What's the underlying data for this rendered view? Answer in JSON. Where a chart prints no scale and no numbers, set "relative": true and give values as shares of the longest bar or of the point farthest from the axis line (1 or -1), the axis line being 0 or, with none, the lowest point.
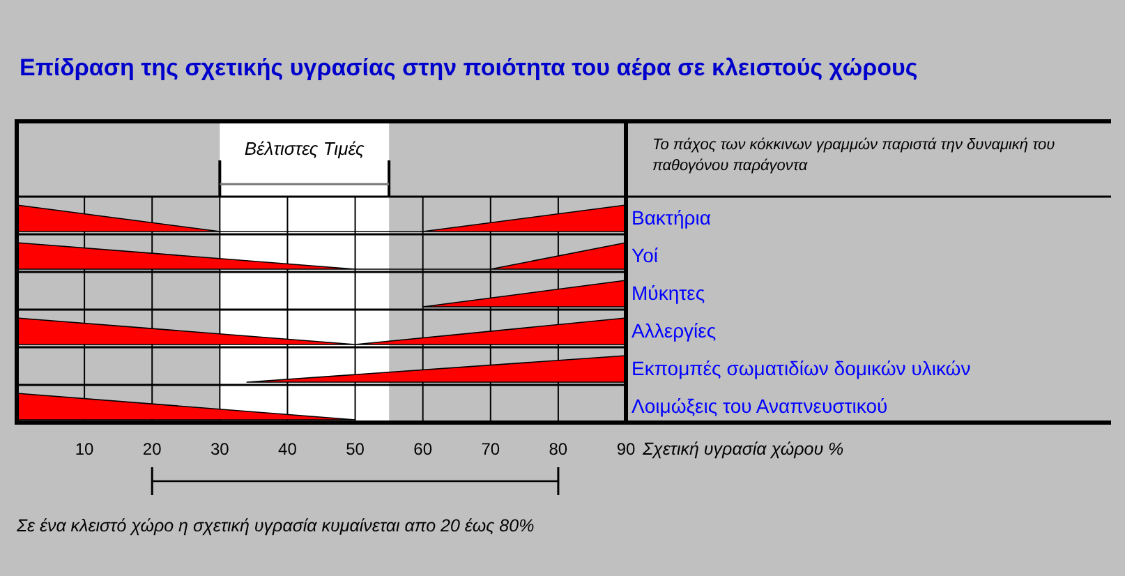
{
  "chart_data": [
    {
      "type": "area",
      "title": "Επίδραση της σχετικής υγρασίας στην ποιότητα του αέρα σε κλειστούς χώρους",
      "annotations": [
        "Το πάχος των κόκκινων γραμμών παριστά την δυναμική του παθογόνου παράγοντα"
      ],
      "relative": true,
      "xlim": [
        0,
        90
      ],
      "xticks": [
        10,
        20,
        30,
        40,
        50,
        60,
        70,
        80,
        90
      ],
      "tick_labels": false,
      "grid": "x",
      "bands": [
        {
          "axis": "x",
          "from": 30,
          "to": 55,
          "label": "Βέλτιστες Τιμές",
          "color": "#ffffff"
        }
      ],
      "series": [
        {
          "name": "Βακτήρια",
          "color": "#ff0000",
          "x": [
            0,
            30,
            60,
            90
          ],
          "values": [
            1,
            0,
            0,
            1
          ]
        }
      ]
    },
    {
      "type": "area",
      "relative": true,
      "xlim": [
        0,
        90
      ],
      "xticks": [
        10,
        20,
        30,
        40,
        50,
        60,
        70,
        80,
        90
      ],
      "tick_labels": false,
      "grid": "x",
      "bands": [
        {
          "axis": "x",
          "from": 30,
          "to": 55,
          "color": "#ffffff"
        }
      ],
      "series": [
        {
          "name": "Υοί",
          "color": "#ff0000",
          "x": [
            0,
            50,
            70,
            90
          ],
          "values": [
            1,
            0,
            0,
            1
          ]
        }
      ]
    },
    {
      "type": "area",
      "relative": true,
      "xlim": [
        0,
        90
      ],
      "xticks": [
        10,
        20,
        30,
        40,
        50,
        60,
        70,
        80,
        90
      ],
      "tick_labels": false,
      "grid": "x",
      "bands": [
        {
          "axis": "x",
          "from": 30,
          "to": 55,
          "color": "#ffffff"
        }
      ],
      "series": [
        {
          "name": "Μύκητες",
          "color": "#ff0000",
          "x": [
            60,
            90
          ],
          "values": [
            0,
            1
          ]
        }
      ]
    },
    {
      "type": "area",
      "relative": true,
      "xlim": [
        0,
        90
      ],
      "xticks": [
        10,
        20,
        30,
        40,
        50,
        60,
        70,
        80,
        90
      ],
      "tick_labels": false,
      "grid": "x",
      "bands": [
        {
          "axis": "x",
          "from": 30,
          "to": 55,
          "color": "#ffffff"
        }
      ],
      "series": [
        {
          "name": "Αλλεργίες",
          "color": "#ff0000",
          "x": [
            0,
            50,
            90
          ],
          "values": [
            1,
            0,
            1
          ]
        }
      ]
    },
    {
      "type": "area",
      "relative": true,
      "xlim": [
        0,
        90
      ],
      "xticks": [
        10,
        20,
        30,
        40,
        50,
        60,
        70,
        80,
        90
      ],
      "tick_labels": false,
      "grid": "x",
      "bands": [
        {
          "axis": "x",
          "from": 30,
          "to": 55,
          "color": "#ffffff"
        }
      ],
      "series": [
        {
          "name": "Εκπομπές σωματιδίων δομικών υλικών",
          "color": "#ff0000",
          "x": [
            34,
            90
          ],
          "values": [
            0,
            1
          ]
        }
      ]
    },
    {
      "type": "area",
      "relative": true,
      "xlabel": "Σχετική υγρασία χώρου %",
      "xlim": [
        0,
        90
      ],
      "xticks": [
        10,
        20,
        30,
        40,
        50,
        60,
        70,
        80,
        90
      ],
      "tick_labels": "x",
      "grid": "x",
      "bands": [
        {
          "axis": "x",
          "from": 30,
          "to": 55,
          "color": "#ffffff"
        }
      ],
      "annotations": [
        "Σε ένα κλειστό χώρο η σχετική υγρασία κυμαίνεται απο 20 έως 80%"
      ],
      "series": [
        {
          "name": "Λοιμώξεις του Αναπνευστικού",
          "color": "#ff0000",
          "x": [
            0,
            50
          ],
          "values": [
            1,
            0
          ]
        }
      ]
    }
  ]
}
